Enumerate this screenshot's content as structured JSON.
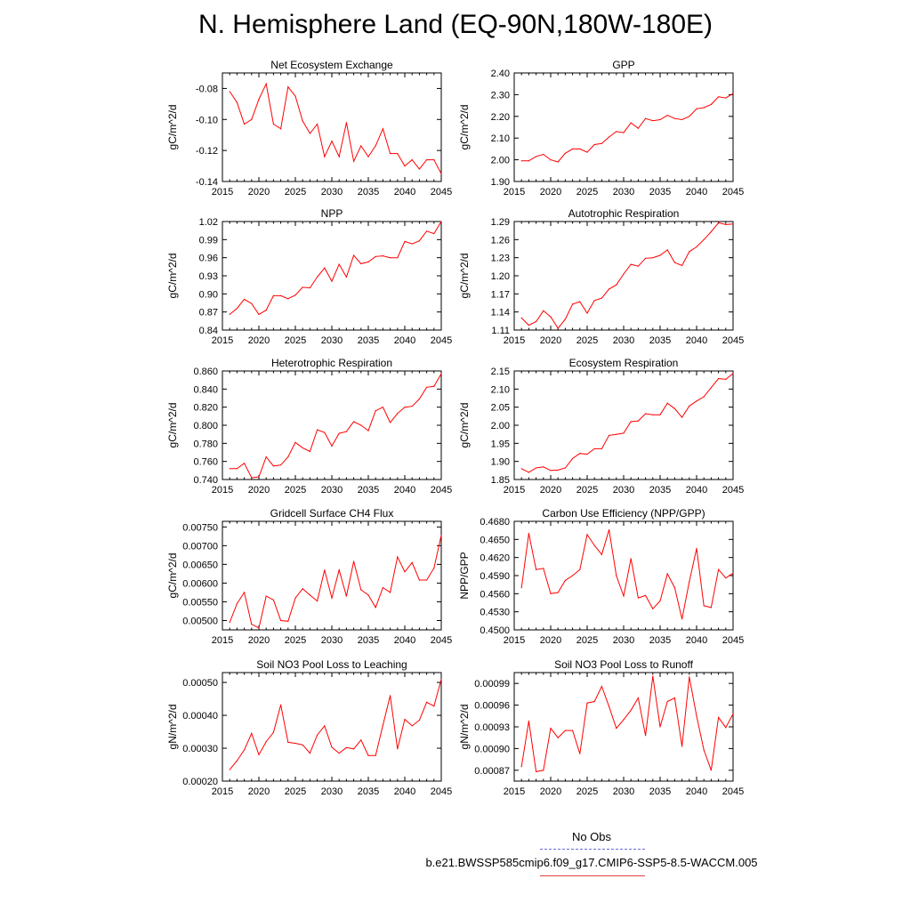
{
  "title": "N. Hemisphere Land (EQ-90N,180W-180E)",
  "colors": {
    "series": "#ff0000",
    "obs": "#6a6ad8",
    "axis": "#000000"
  },
  "legend": {
    "obs_label": "No Obs",
    "case_label": "b.e21.BWSSP585cmip6.f09_g17.CMIP6-SSP5-8.5-WACCM.005"
  },
  "chart_data": [
    {
      "type": "line",
      "title": "Net Ecosystem Exchange",
      "xlabel": "",
      "ylabel": "gC/m^2/d",
      "xlim": [
        2015,
        2045
      ],
      "ylim": [
        -0.14,
        -0.07
      ],
      "xticks": [
        2015,
        2020,
        2025,
        2030,
        2035,
        2040,
        2045
      ],
      "yticks": [
        -0.14,
        -0.12,
        -0.1,
        -0.08
      ],
      "ytick_labels": [
        "-0.14",
        "-0.12",
        "-0.10",
        "-0.08"
      ],
      "x": [
        2016,
        2017,
        2018,
        2019,
        2020,
        2021,
        2022,
        2023,
        2024,
        2025,
        2026,
        2027,
        2028,
        2029,
        2030,
        2031,
        2032,
        2033,
        2034,
        2035,
        2036,
        2037,
        2038,
        2039,
        2040,
        2041,
        2042,
        2043,
        2044,
        2045
      ],
      "values": [
        -0.082,
        -0.089,
        -0.103,
        -0.1,
        -0.087,
        -0.077,
        -0.103,
        -0.106,
        -0.079,
        -0.085,
        -0.101,
        -0.109,
        -0.103,
        -0.124,
        -0.114,
        -0.124,
        -0.102,
        -0.127,
        -0.117,
        -0.124,
        -0.117,
        -0.106,
        -0.122,
        -0.122,
        -0.13,
        -0.126,
        -0.132,
        -0.126,
        -0.126,
        -0.135
      ]
    },
    {
      "type": "line",
      "title": "GPP",
      "xlabel": "",
      "ylabel": "gC/m^2/d",
      "xlim": [
        2015,
        2045
      ],
      "ylim": [
        1.9,
        2.4
      ],
      "xticks": [
        2015,
        2020,
        2025,
        2030,
        2035,
        2040,
        2045
      ],
      "yticks": [
        1.9,
        2.0,
        2.1,
        2.2,
        2.3,
        2.4
      ],
      "ytick_labels": [
        "1.90",
        "2.00",
        "2.10",
        "2.20",
        "2.30",
        "2.40"
      ],
      "x": [
        2016,
        2017,
        2018,
        2019,
        2020,
        2021,
        2022,
        2023,
        2024,
        2025,
        2026,
        2027,
        2028,
        2029,
        2030,
        2031,
        2032,
        2033,
        2034,
        2035,
        2036,
        2037,
        2038,
        2039,
        2040,
        2041,
        2042,
        2043,
        2044,
        2045
      ],
      "values": [
        1.995,
        1.995,
        2.015,
        2.025,
        2.0,
        1.99,
        2.03,
        2.05,
        2.05,
        2.035,
        2.07,
        2.075,
        2.105,
        2.13,
        2.125,
        2.17,
        2.145,
        2.19,
        2.18,
        2.185,
        2.205,
        2.19,
        2.185,
        2.2,
        2.235,
        2.24,
        2.255,
        2.29,
        2.285,
        2.305
      ]
    },
    {
      "type": "line",
      "title": "NPP",
      "xlabel": "",
      "ylabel": "gC/m^2/d",
      "xlim": [
        2015,
        2045
      ],
      "ylim": [
        0.84,
        1.02
      ],
      "xticks": [
        2015,
        2020,
        2025,
        2030,
        2035,
        2040,
        2045
      ],
      "yticks": [
        0.84,
        0.87,
        0.9,
        0.93,
        0.96,
        0.99,
        1.02
      ],
      "ytick_labels": [
        "0.84",
        "0.87",
        "0.90",
        "0.93",
        "0.96",
        "0.99",
        "1.02"
      ],
      "x": [
        2016,
        2017,
        2018,
        2019,
        2020,
        2021,
        2022,
        2023,
        2024,
        2025,
        2026,
        2027,
        2028,
        2029,
        2030,
        2031,
        2032,
        2033,
        2034,
        2035,
        2036,
        2037,
        2038,
        2039,
        2040,
        2041,
        2042,
        2043,
        2044,
        2045
      ],
      "values": [
        0.866,
        0.876,
        0.891,
        0.884,
        0.866,
        0.873,
        0.897,
        0.897,
        0.892,
        0.898,
        0.911,
        0.91,
        0.928,
        0.943,
        0.921,
        0.949,
        0.928,
        0.964,
        0.95,
        0.953,
        0.962,
        0.963,
        0.96,
        0.96,
        0.987,
        0.983,
        0.988,
        1.004,
        1.0,
        1.02
      ]
    },
    {
      "type": "line",
      "title": "Autotrophic Respiration",
      "xlabel": "",
      "ylabel": "gC/m^2/d",
      "xlim": [
        2015,
        2045
      ],
      "ylim": [
        1.11,
        1.29
      ],
      "xticks": [
        2015,
        2020,
        2025,
        2030,
        2035,
        2040,
        2045
      ],
      "yticks": [
        1.11,
        1.14,
        1.17,
        1.2,
        1.23,
        1.26,
        1.29
      ],
      "ytick_labels": [
        "1.11",
        "1.14",
        "1.17",
        "1.20",
        "1.23",
        "1.26",
        "1.29"
      ],
      "x": [
        2016,
        2017,
        2018,
        2019,
        2020,
        2021,
        2022,
        2023,
        2024,
        2025,
        2026,
        2027,
        2028,
        2029,
        2030,
        2031,
        2032,
        2033,
        2034,
        2035,
        2036,
        2037,
        2038,
        2039,
        2040,
        2041,
        2042,
        2043,
        2044,
        2045
      ],
      "values": [
        1.13,
        1.118,
        1.124,
        1.142,
        1.132,
        1.113,
        1.128,
        1.153,
        1.157,
        1.138,
        1.159,
        1.163,
        1.178,
        1.185,
        1.203,
        1.219,
        1.216,
        1.229,
        1.23,
        1.234,
        1.243,
        1.222,
        1.217,
        1.24,
        1.248,
        1.26,
        1.273,
        1.288,
        1.285,
        1.286
      ]
    },
    {
      "type": "line",
      "title": "Heterotrophic Respiration",
      "xlabel": "",
      "ylabel": "gC/m^2/d",
      "xlim": [
        2015,
        2045
      ],
      "ylim": [
        0.74,
        0.86
      ],
      "xticks": [
        2015,
        2020,
        2025,
        2030,
        2035,
        2040,
        2045
      ],
      "yticks": [
        0.74,
        0.76,
        0.78,
        0.8,
        0.82,
        0.84,
        0.86
      ],
      "ytick_labels": [
        "0.740",
        "0.760",
        "0.780",
        "0.800",
        "0.820",
        "0.840",
        "0.860"
      ],
      "x": [
        2016,
        2017,
        2018,
        2019,
        2020,
        2021,
        2022,
        2023,
        2024,
        2025,
        2026,
        2027,
        2028,
        2029,
        2030,
        2031,
        2032,
        2033,
        2034,
        2035,
        2036,
        2037,
        2038,
        2039,
        2040,
        2041,
        2042,
        2043,
        2044,
        2045
      ],
      "values": [
        0.752,
        0.752,
        0.758,
        0.742,
        0.743,
        0.765,
        0.755,
        0.756,
        0.765,
        0.781,
        0.775,
        0.771,
        0.795,
        0.792,
        0.777,
        0.791,
        0.793,
        0.804,
        0.8,
        0.794,
        0.816,
        0.82,
        0.803,
        0.813,
        0.82,
        0.821,
        0.829,
        0.842,
        0.843,
        0.857
      ]
    },
    {
      "type": "line",
      "title": "Ecosystem Respiration",
      "xlabel": "",
      "ylabel": "gC/m^2/d",
      "xlim": [
        2015,
        2045
      ],
      "ylim": [
        1.85,
        2.15
      ],
      "xticks": [
        2015,
        2020,
        2025,
        2030,
        2035,
        2040,
        2045
      ],
      "yticks": [
        1.85,
        1.9,
        1.95,
        2.0,
        2.05,
        2.1,
        2.15
      ],
      "ytick_labels": [
        "1.85",
        "1.90",
        "1.95",
        "2.00",
        "2.05",
        "2.10",
        "2.15"
      ],
      "x": [
        2016,
        2017,
        2018,
        2019,
        2020,
        2021,
        2022,
        2023,
        2024,
        2025,
        2026,
        2027,
        2028,
        2029,
        2030,
        2031,
        2032,
        2033,
        2034,
        2035,
        2036,
        2037,
        2038,
        2039,
        2040,
        2041,
        2042,
        2043,
        2044,
        2045
      ],
      "values": [
        1.88,
        1.87,
        1.882,
        1.885,
        1.875,
        1.876,
        1.882,
        1.908,
        1.922,
        1.92,
        1.935,
        1.935,
        1.972,
        1.975,
        1.978,
        2.01,
        2.012,
        2.032,
        2.029,
        2.029,
        2.061,
        2.046,
        2.022,
        2.053,
        2.067,
        2.079,
        2.104,
        2.129,
        2.127,
        2.143
      ]
    },
    {
      "type": "line",
      "title": "Gridcell Surface CH4 Flux",
      "xlabel": "",
      "ylabel": "gC/m^2/d",
      "xlim": [
        2015,
        2045
      ],
      "ylim": [
        0.00475,
        0.00765
      ],
      "xticks": [
        2015,
        2020,
        2025,
        2030,
        2035,
        2040,
        2045
      ],
      "yticks": [
        0.005,
        0.0055,
        0.006,
        0.0065,
        0.007,
        0.0075
      ],
      "ytick_labels": [
        "0.00500",
        "0.00550",
        "0.00600",
        "0.00650",
        "0.00700",
        "0.00750"
      ],
      "x": [
        2016,
        2017,
        2018,
        2019,
        2020,
        2021,
        2022,
        2023,
        2024,
        2025,
        2026,
        2027,
        2028,
        2029,
        2030,
        2031,
        2032,
        2033,
        2034,
        2035,
        2036,
        2037,
        2038,
        2039,
        2040,
        2041,
        2042,
        2043,
        2044,
        2045
      ],
      "values": [
        0.00495,
        0.00545,
        0.00575,
        0.0049,
        0.0048,
        0.00565,
        0.00555,
        0.005,
        0.00498,
        0.0056,
        0.00585,
        0.00568,
        0.00552,
        0.00635,
        0.0056,
        0.00635,
        0.00565,
        0.00658,
        0.00582,
        0.00568,
        0.00535,
        0.00588,
        0.00575,
        0.0067,
        0.0063,
        0.00655,
        0.00608,
        0.00608,
        0.0064,
        0.00728
      ]
    },
    {
      "type": "line",
      "title": "Carbon Use Efficiency (NPP/GPP)",
      "xlabel": "",
      "ylabel": "NPP/GPP",
      "xlim": [
        2015,
        2045
      ],
      "ylim": [
        0.45,
        0.468
      ],
      "xticks": [
        2015,
        2020,
        2025,
        2030,
        2035,
        2040,
        2045
      ],
      "yticks": [
        0.45,
        0.453,
        0.456,
        0.459,
        0.462,
        0.465,
        0.468
      ],
      "ytick_labels": [
        "0.4500",
        "0.4530",
        "0.4560",
        "0.4590",
        "0.4620",
        "0.4650",
        "0.4680"
      ],
      "x": [
        2016,
        2017,
        2018,
        2019,
        2020,
        2021,
        2022,
        2023,
        2024,
        2025,
        2026,
        2027,
        2028,
        2029,
        2030,
        2031,
        2032,
        2033,
        2034,
        2035,
        2036,
        2037,
        2038,
        2039,
        2040,
        2041,
        2042,
        2043,
        2044,
        2045
      ],
      "values": [
        0.457,
        0.466,
        0.46,
        0.4602,
        0.456,
        0.4562,
        0.4582,
        0.459,
        0.46,
        0.4658,
        0.464,
        0.4625,
        0.4666,
        0.459,
        0.4556,
        0.4618,
        0.4553,
        0.4557,
        0.4535,
        0.4548,
        0.4593,
        0.457,
        0.4518,
        0.458,
        0.4635,
        0.454,
        0.4537,
        0.46,
        0.4586,
        0.4594
      ]
    },
    {
      "type": "line",
      "title": "Soil NO3 Pool Loss to Leaching",
      "xlabel": "",
      "ylabel": "gN/m^2/d",
      "xlim": [
        2015,
        2045
      ],
      "ylim": [
        0.0002,
        0.00053
      ],
      "xticks": [
        2015,
        2020,
        2025,
        2030,
        2035,
        2040,
        2045
      ],
      "yticks": [
        0.0002,
        0.0003,
        0.0004,
        0.0005
      ],
      "ytick_labels": [
        "0.00020",
        "0.00030",
        "0.00040",
        "0.00050"
      ],
      "x": [
        2016,
        2017,
        2018,
        2019,
        2020,
        2021,
        2022,
        2023,
        2024,
        2025,
        2026,
        2027,
        2028,
        2029,
        2030,
        2031,
        2032,
        2033,
        2034,
        2035,
        2036,
        2037,
        2038,
        2039,
        2040,
        2041,
        2042,
        2043,
        2044,
        2045
      ],
      "values": [
        0.000235,
        0.000262,
        0.000295,
        0.000345,
        0.00028,
        0.00032,
        0.000348,
        0.000432,
        0.000318,
        0.000315,
        0.00031,
        0.000285,
        0.00034,
        0.000368,
        0.000303,
        0.000285,
        0.000302,
        0.000298,
        0.000325,
        0.000278,
        0.000278,
        0.00037,
        0.00046,
        0.000298,
        0.000388,
        0.000368,
        0.000385,
        0.00044,
        0.000428,
        0.00051
      ]
    },
    {
      "type": "line",
      "title": "Soil NO3 Pool Loss to Runoff",
      "xlabel": "",
      "ylabel": "gN/m^2/d",
      "xlim": [
        2015,
        2045
      ],
      "ylim": [
        0.000855,
        0.001005
      ],
      "xticks": [
        2015,
        2020,
        2025,
        2030,
        2035,
        2040,
        2045
      ],
      "yticks": [
        0.00087,
        0.0009,
        0.00093,
        0.00096,
        0.00099
      ],
      "ytick_labels": [
        "0.00087",
        "0.00090",
        "0.00093",
        "0.00096",
        "0.00099"
      ],
      "x": [
        2016,
        2017,
        2018,
        2019,
        2020,
        2021,
        2022,
        2023,
        2024,
        2025,
        2026,
        2027,
        2028,
        2029,
        2030,
        2031,
        2032,
        2033,
        2034,
        2035,
        2036,
        2037,
        2038,
        2039,
        2040,
        2041,
        2042,
        2043,
        2044,
        2045
      ],
      "values": [
        0.000875,
        0.000938,
        0.000868,
        0.00087,
        0.000928,
        0.000915,
        0.000925,
        0.000925,
        0.000893,
        0.000963,
        0.000965,
        0.000986,
        0.000958,
        0.000928,
        0.00094,
        0.000953,
        0.00097,
        0.000918,
        0.001,
        0.00093,
        0.000965,
        0.00097,
        0.000903,
        0.000999,
        0.000945,
        0.000898,
        0.00087,
        0.000943,
        0.000929,
        0.000948
      ]
    }
  ]
}
